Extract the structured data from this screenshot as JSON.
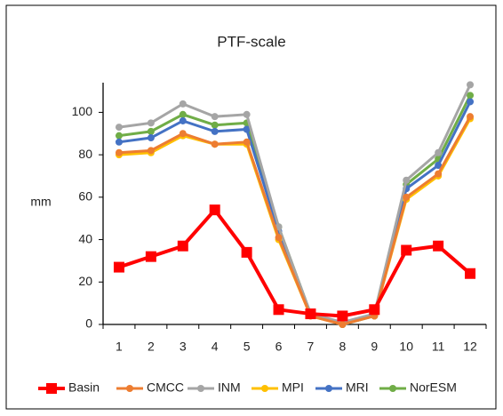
{
  "chart_data": {
    "type": "line",
    "title": "PTF-scale",
    "y_label": "mm",
    "categories": [
      "1",
      "2",
      "3",
      "4",
      "5",
      "6",
      "7",
      "8",
      "9",
      "10",
      "11",
      "12"
    ],
    "series": [
      {
        "name": "Basin",
        "color": "#ff0000",
        "marker": "square",
        "values": [
          27,
          32,
          37,
          54,
          34,
          7,
          5,
          4,
          7,
          35,
          37,
          24
        ]
      },
      {
        "name": "CMCC",
        "color": "#ed7d31",
        "marker": "circle",
        "values": [
          81,
          82,
          90,
          85,
          86,
          41,
          4,
          0,
          4,
          60,
          71,
          98
        ]
      },
      {
        "name": "INM",
        "color": "#a5a5a5",
        "marker": "circle",
        "values": [
          93,
          95,
          104,
          98,
          99,
          46,
          5,
          1,
          5,
          68,
          81,
          113
        ]
      },
      {
        "name": "MPI",
        "color": "#ffc000",
        "marker": "circle",
        "values": [
          80,
          81,
          89,
          85,
          85,
          40,
          4,
          0,
          4,
          59,
          70,
          97
        ]
      },
      {
        "name": "MRI",
        "color": "#4472c4",
        "marker": "circle",
        "values": [
          86,
          88,
          96,
          91,
          92,
          44,
          5,
          0,
          4,
          64,
          75,
          105
        ]
      },
      {
        "name": "NorESM",
        "color": "#70ad47",
        "marker": "circle",
        "values": [
          89,
          91,
          99,
          94,
          95,
          46,
          5,
          0,
          4,
          66,
          78,
          108
        ]
      }
    ],
    "ylim": [
      0,
      114
    ],
    "yticks": [
      0,
      20,
      40,
      60,
      80,
      100
    ],
    "grid": false,
    "legend": "bottom"
  }
}
